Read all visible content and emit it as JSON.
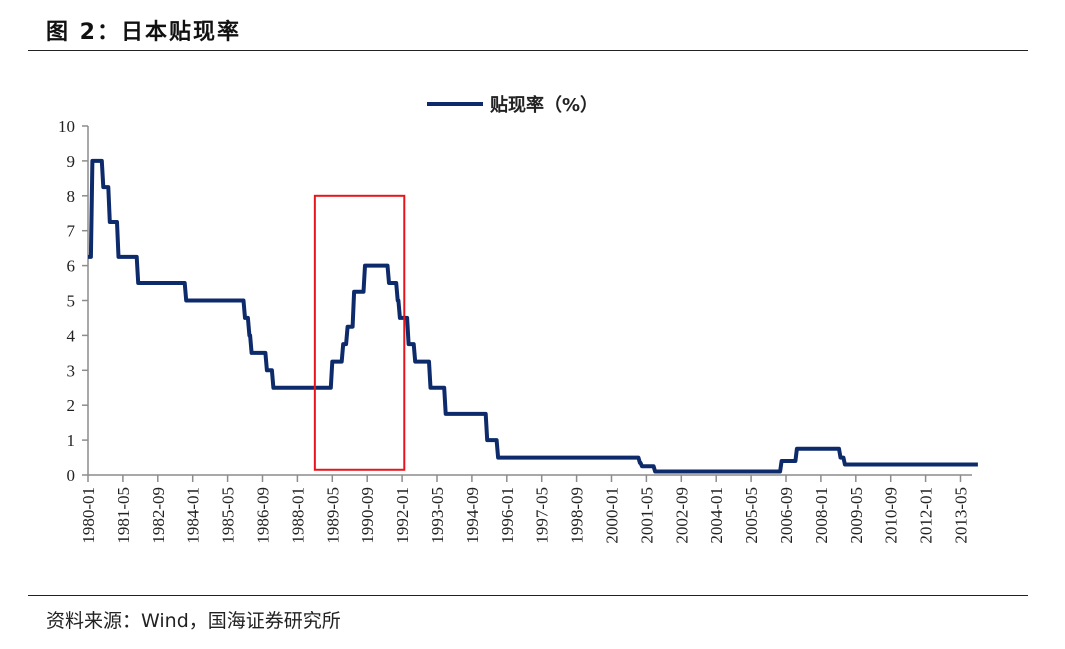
{
  "header": {
    "figure_title": "图 2：日本贴现率"
  },
  "footer": {
    "source": "资料来源：Wind，国海证券研究所"
  },
  "colors": {
    "series_line": "#0d2a6b",
    "highlight_box": "#e8141c",
    "axis": "#8c8c8c",
    "text": "#222222"
  },
  "chart_data": {
    "type": "line",
    "title": "日本贴现率",
    "xlabel": "",
    "ylabel": "",
    "ylim": [
      0,
      10
    ],
    "yticks": [
      0,
      1,
      2,
      3,
      4,
      5,
      6,
      7,
      8,
      9,
      10
    ],
    "xlim": [
      "1980-01",
      "2014-01"
    ],
    "xticks": [
      "1980-01",
      "1981-05",
      "1982-09",
      "1984-01",
      "1985-05",
      "1986-09",
      "1988-01",
      "1989-05",
      "1990-09",
      "1992-01",
      "1993-05",
      "1994-09",
      "1996-01",
      "1997-05",
      "1998-09",
      "2000-01",
      "2001-05",
      "2002-09",
      "2004-01",
      "2005-05",
      "2006-09",
      "2008-01",
      "2009-05",
      "2010-09",
      "2012-01",
      "2013-05"
    ],
    "grid": false,
    "legend": {
      "position": "top-center",
      "entries": [
        "贴现率（%）"
      ]
    },
    "step": true,
    "series": [
      {
        "name": "贴现率（%）",
        "points": [
          [
            "1980-01",
            6.25
          ],
          [
            "1980-03",
            9.0
          ],
          [
            "1980-08",
            8.25
          ],
          [
            "1980-11",
            7.25
          ],
          [
            "1981-03",
            6.25
          ],
          [
            "1981-12",
            5.5
          ],
          [
            "1983-10",
            5.0
          ],
          [
            "1986-01",
            4.5
          ],
          [
            "1986-03",
            4.0
          ],
          [
            "1986-04",
            3.5
          ],
          [
            "1986-11",
            3.0
          ],
          [
            "1987-02",
            2.5
          ],
          [
            "1989-05",
            3.25
          ],
          [
            "1989-10",
            3.75
          ],
          [
            "1989-12",
            4.25
          ],
          [
            "1990-03",
            5.25
          ],
          [
            "1990-08",
            6.0
          ],
          [
            "1991-07",
            5.5
          ],
          [
            "1991-11",
            5.0
          ],
          [
            "1991-12",
            4.5
          ],
          [
            "1992-04",
            3.75
          ],
          [
            "1992-07",
            3.25
          ],
          [
            "1993-02",
            2.5
          ],
          [
            "1993-09",
            1.75
          ],
          [
            "1995-04",
            1.0
          ],
          [
            "1995-09",
            0.5
          ],
          [
            "2001-02",
            0.35
          ],
          [
            "2001-03",
            0.25
          ],
          [
            "2001-09",
            0.1
          ],
          [
            "2006-07",
            0.4
          ],
          [
            "2007-02",
            0.75
          ],
          [
            "2008-10",
            0.5
          ],
          [
            "2008-12",
            0.3
          ],
          [
            "2014-01",
            0.3
          ]
        ]
      }
    ],
    "annotations": [
      {
        "type": "rectangle",
        "color": "#e8141c",
        "x_from": "1988-09",
        "x_to": "1992-02",
        "y_from": 0.15,
        "y_to": 8.0
      }
    ]
  }
}
